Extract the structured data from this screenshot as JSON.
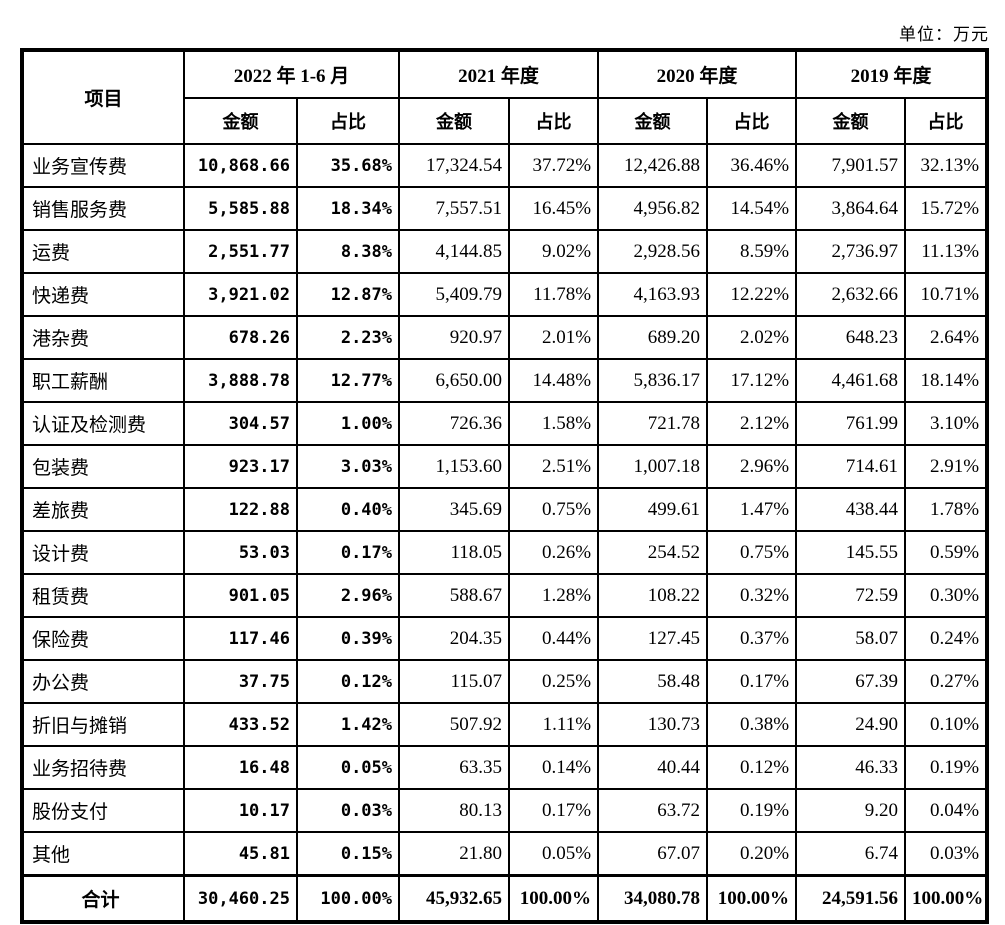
{
  "unit_label": "单位：万元",
  "colors": {
    "text": "#000000",
    "border": "#000000",
    "background": "#ffffff"
  },
  "table": {
    "item_header": "项目",
    "amount_header": "金额",
    "ratio_header": "占比",
    "periods": [
      {
        "label": "2022 年 1-6 月"
      },
      {
        "label": "2021 年度"
      },
      {
        "label": "2020 年度"
      },
      {
        "label": "2019 年度"
      }
    ],
    "rows": [
      {
        "item": "业务宣传费",
        "values": [
          "10,868.66",
          "35.68%",
          "17,324.54",
          "37.72%",
          "12,426.88",
          "36.46%",
          "7,901.57",
          "32.13%"
        ]
      },
      {
        "item": "销售服务费",
        "values": [
          "5,585.88",
          "18.34%",
          "7,557.51",
          "16.45%",
          "4,956.82",
          "14.54%",
          "3,864.64",
          "15.72%"
        ]
      },
      {
        "item": "运费",
        "values": [
          "2,551.77",
          "8.38%",
          "4,144.85",
          "9.02%",
          "2,928.56",
          "8.59%",
          "2,736.97",
          "11.13%"
        ]
      },
      {
        "item": "快递费",
        "values": [
          "3,921.02",
          "12.87%",
          "5,409.79",
          "11.78%",
          "4,163.93",
          "12.22%",
          "2,632.66",
          "10.71%"
        ]
      },
      {
        "item": "港杂费",
        "values": [
          "678.26",
          "2.23%",
          "920.97",
          "2.01%",
          "689.20",
          "2.02%",
          "648.23",
          "2.64%"
        ]
      },
      {
        "item": "职工薪酬",
        "values": [
          "3,888.78",
          "12.77%",
          "6,650.00",
          "14.48%",
          "5,836.17",
          "17.12%",
          "4,461.68",
          "18.14%"
        ]
      },
      {
        "item": "认证及检测费",
        "values": [
          "304.57",
          "1.00%",
          "726.36",
          "1.58%",
          "721.78",
          "2.12%",
          "761.99",
          "3.10%"
        ]
      },
      {
        "item": "包装费",
        "values": [
          "923.17",
          "3.03%",
          "1,153.60",
          "2.51%",
          "1,007.18",
          "2.96%",
          "714.61",
          "2.91%"
        ]
      },
      {
        "item": "差旅费",
        "values": [
          "122.88",
          "0.40%",
          "345.69",
          "0.75%",
          "499.61",
          "1.47%",
          "438.44",
          "1.78%"
        ]
      },
      {
        "item": "设计费",
        "values": [
          "53.03",
          "0.17%",
          "118.05",
          "0.26%",
          "254.52",
          "0.75%",
          "145.55",
          "0.59%"
        ]
      },
      {
        "item": "租赁费",
        "values": [
          "901.05",
          "2.96%",
          "588.67",
          "1.28%",
          "108.22",
          "0.32%",
          "72.59",
          "0.30%"
        ]
      },
      {
        "item": "保险费",
        "values": [
          "117.46",
          "0.39%",
          "204.35",
          "0.44%",
          "127.45",
          "0.37%",
          "58.07",
          "0.24%"
        ]
      },
      {
        "item": "办公费",
        "values": [
          "37.75",
          "0.12%",
          "115.07",
          "0.25%",
          "58.48",
          "0.17%",
          "67.39",
          "0.27%"
        ]
      },
      {
        "item": "折旧与摊销",
        "values": [
          "433.52",
          "1.42%",
          "507.92",
          "1.11%",
          "130.73",
          "0.38%",
          "24.90",
          "0.10%"
        ]
      },
      {
        "item": "业务招待费",
        "values": [
          "16.48",
          "0.05%",
          "63.35",
          "0.14%",
          "40.44",
          "0.12%",
          "46.33",
          "0.19%"
        ]
      },
      {
        "item": "股份支付",
        "values": [
          "10.17",
          "0.03%",
          "80.13",
          "0.17%",
          "63.72",
          "0.19%",
          "9.20",
          "0.04%"
        ]
      },
      {
        "item": "其他",
        "values": [
          "45.81",
          "0.15%",
          "21.80",
          "0.05%",
          "67.07",
          "0.20%",
          "6.74",
          "0.03%"
        ]
      }
    ],
    "total": {
      "item": "合计",
      "values": [
        "30,460.25",
        "100.00%",
        "45,932.65",
        "100.00%",
        "34,080.78",
        "100.00%",
        "24,591.56",
        "100.00%"
      ]
    }
  }
}
